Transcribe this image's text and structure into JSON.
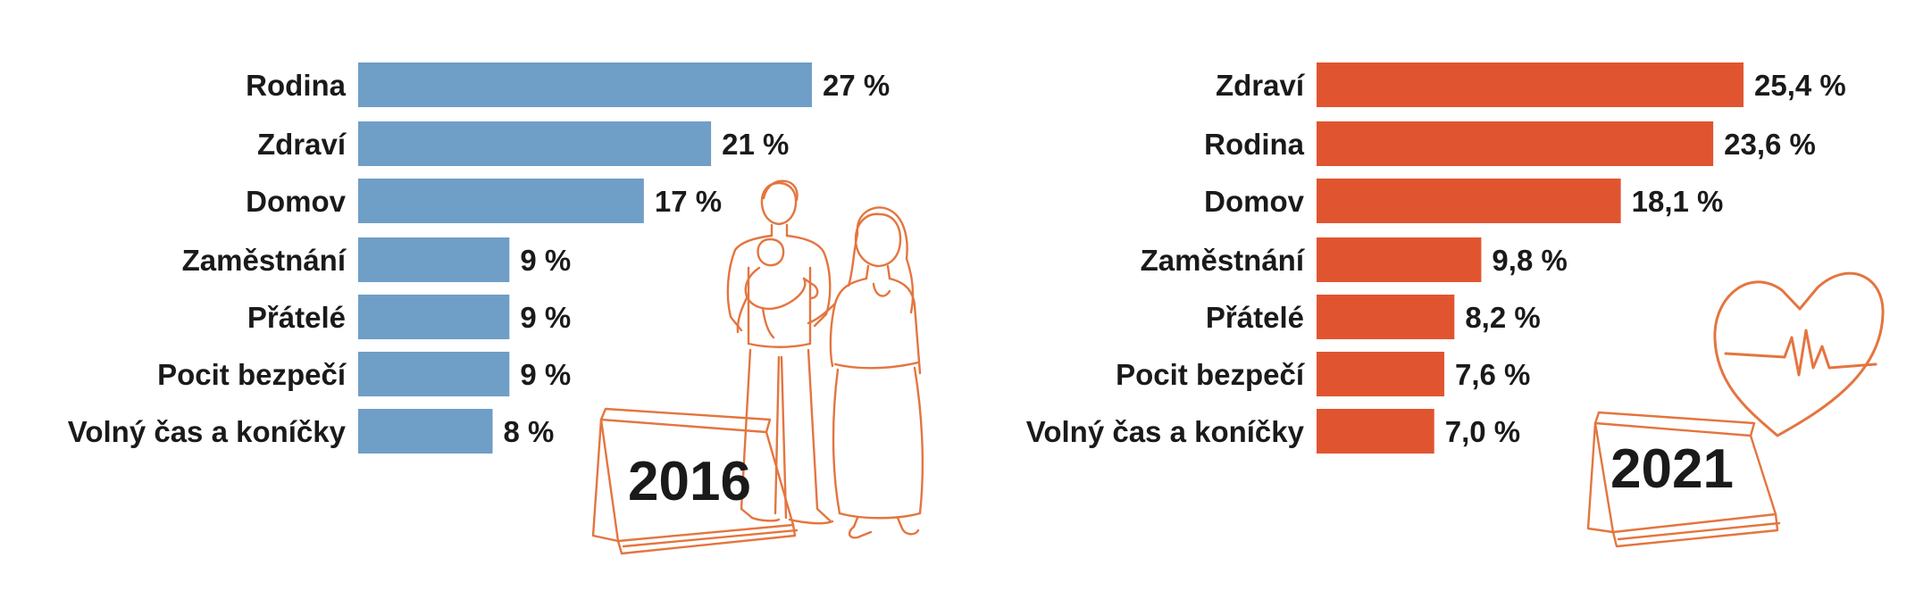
{
  "colors": {
    "bar_2016": "#6f9ec6",
    "bar_2021": "#e05530",
    "text": "#1a1a1a",
    "line_art": "#e4753f"
  },
  "chart_data": [
    {
      "type": "bar",
      "orientation": "horizontal",
      "year": "2016",
      "categories": [
        "Rodina",
        "Zdraví",
        "Domov",
        "Zaměstnání",
        "Přátelé",
        "Pocit bezpečí",
        "Volný čas a koníčky"
      ],
      "values": [
        27,
        21,
        17,
        9,
        9,
        9,
        8
      ],
      "value_labels": [
        "27 %",
        "21 %",
        "17 %",
        "9 %",
        "9 %",
        "9 %",
        "8 %"
      ],
      "xlim": [
        0,
        27
      ],
      "grid": false,
      "legend": false,
      "decoration": "family-illustration"
    },
    {
      "type": "bar",
      "orientation": "horizontal",
      "year": "2021",
      "categories": [
        "Zdraví",
        "Rodina",
        "Domov",
        "Zaměstnání",
        "Přátelé",
        "Pocit bezpečí",
        "Volný čas a koníčky"
      ],
      "values": [
        25.4,
        23.6,
        18.1,
        9.8,
        8.2,
        7.6,
        7.0
      ],
      "value_labels": [
        "25,4 %",
        "23,6 %",
        "18,1 %",
        "9,8 %",
        "8,2 %",
        "7,6 %",
        "7,0 %"
      ],
      "xlim": [
        0,
        25.4
      ],
      "grid": false,
      "legend": false,
      "decoration": "heart-icon"
    }
  ]
}
